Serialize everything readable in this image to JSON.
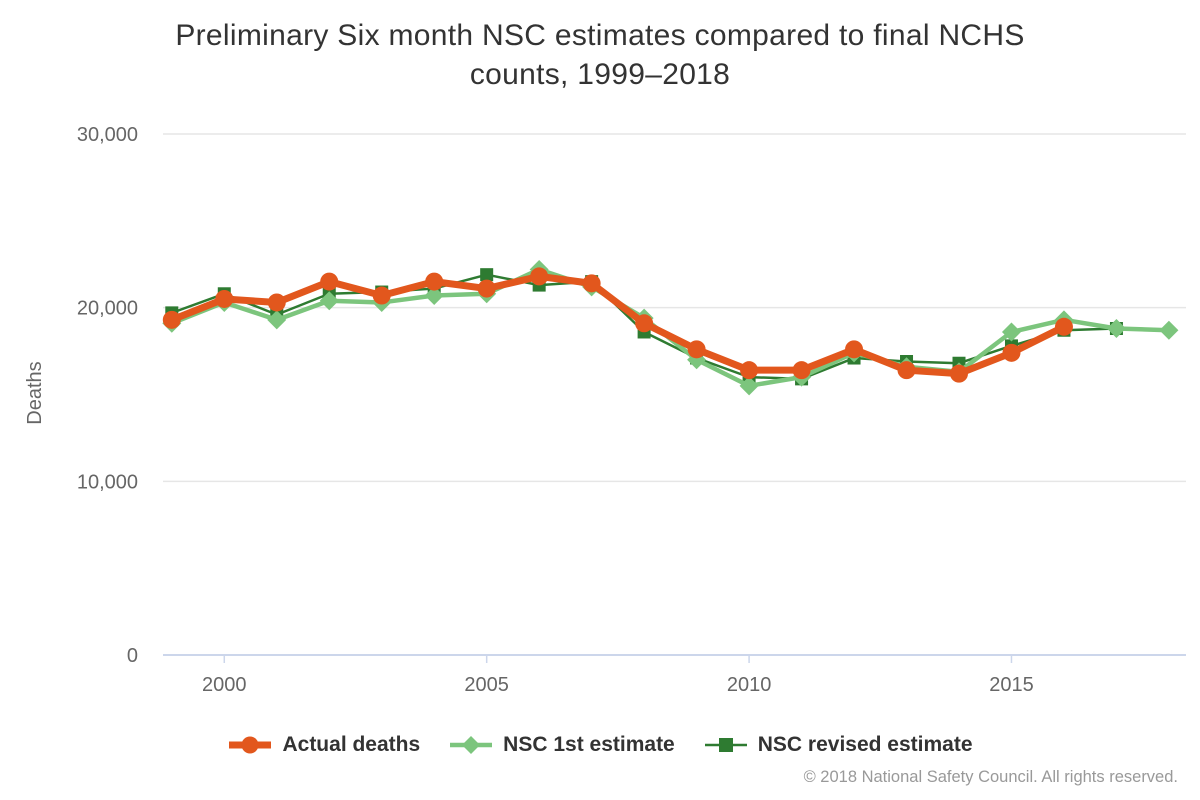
{
  "chart_data": {
    "type": "line",
    "title": "Preliminary Six month NSC estimates compared to final NCHS counts, 1999–2018",
    "title_lines": [
      "Preliminary Six month NSC estimates compared to final NCHS",
      "counts, 1999–2018"
    ],
    "xlabel": "",
    "ylabel": "Deaths",
    "x": [
      1999,
      2000,
      2001,
      2002,
      2003,
      2004,
      2005,
      2006,
      2007,
      2008,
      2009,
      2010,
      2011,
      2012,
      2013,
      2014,
      2015,
      2016,
      2017,
      2018
    ],
    "series": [
      {
        "name": "Actual deaths",
        "color": "#e2571d",
        "marker": "circle",
        "line_width": 7,
        "values": [
          19300,
          20500,
          20300,
          21500,
          20700,
          21500,
          21100,
          21800,
          21400,
          19100,
          17600,
          16400,
          16400,
          17600,
          16400,
          16200,
          17400,
          18900,
          null,
          null
        ]
      },
      {
        "name": "NSC 1st estimate",
        "color": "#7cc57d",
        "marker": "diamond",
        "line_width": 4.5,
        "values": [
          19100,
          20300,
          19300,
          20400,
          20300,
          20700,
          20800,
          22200,
          21200,
          19400,
          17000,
          15500,
          16000,
          17400,
          16600,
          16300,
          18600,
          19300,
          18800,
          18700
        ]
      },
      {
        "name": "NSC revised estimate",
        "color": "#2e7b31",
        "marker": "square",
        "line_width": 2.5,
        "values": [
          19700,
          20800,
          19600,
          20800,
          20900,
          21100,
          21900,
          21300,
          21500,
          18600,
          17100,
          16000,
          15900,
          17100,
          16900,
          16800,
          17800,
          18700,
          18800,
          null
        ]
      }
    ],
    "y_axis": {
      "title": "Deaths",
      "min": 0,
      "max": 30000,
      "ticks": [
        {
          "value": 30000,
          "label": "30,000"
        },
        {
          "value": 20000,
          "label": "20,000"
        },
        {
          "value": 10000,
          "label": "10,000"
        },
        {
          "value": 0,
          "label": "0"
        }
      ]
    },
    "x_axis": {
      "ticks": [
        {
          "value": 2000,
          "label": "2000"
        },
        {
          "value": 2005,
          "label": "2005"
        },
        {
          "value": 2010,
          "label": "2010"
        },
        {
          "value": 2015,
          "label": "2015"
        }
      ]
    },
    "grid": true,
    "legend_position": "bottom",
    "ylim": [
      0,
      30000
    ]
  },
  "styles": {
    "grid_color": "#e6e6e6",
    "axis_line_color": "#ccd6eb",
    "tick_label_color": "#666666",
    "title_color": "#333333",
    "legend_text_color": "#333333",
    "credit_color": "#999999",
    "background": "#ffffff"
  },
  "credit": "© 2018 National Safety Council. All rights reserved."
}
